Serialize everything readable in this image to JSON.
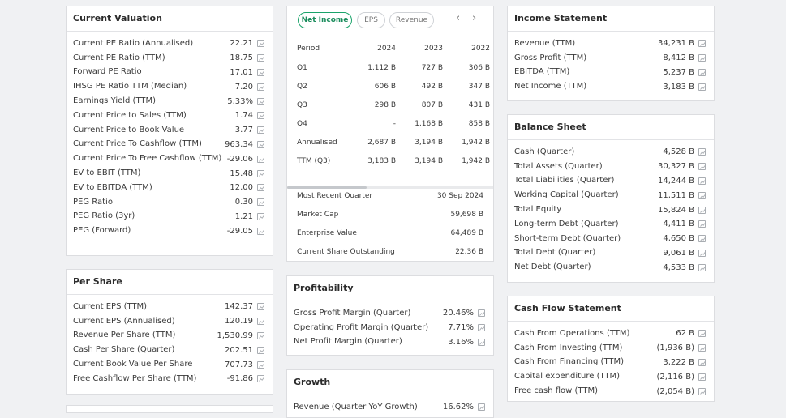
{
  "current_valuation": {
    "title": "Current Valuation",
    "rows": [
      {
        "label": "Current PE Ratio (Annualised)",
        "value": "22.21"
      },
      {
        "label": "Current PE Ratio (TTM)",
        "value": "18.75"
      },
      {
        "label": "Forward PE Ratio",
        "value": "17.01"
      },
      {
        "label": "IHSG PE Ratio TTM (Median)",
        "value": "7.20"
      },
      {
        "label": "Earnings Yield (TTM)",
        "value": "5.33%"
      },
      {
        "label": "Current Price to Sales (TTM)",
        "value": "1.74"
      },
      {
        "label": "Current Price to Book Value",
        "value": "3.77"
      },
      {
        "label": "Current Price To Cashflow (TTM)",
        "value": "963.34"
      },
      {
        "label": "Current Price To Free Cashflow (TTM)",
        "value": "-29.06"
      },
      {
        "label": "EV to EBIT (TTM)",
        "value": "15.48"
      },
      {
        "label": "EV to EBITDA (TTM)",
        "value": "12.00"
      },
      {
        "label": "PEG Ratio",
        "value": "0.30"
      },
      {
        "label": "PEG Ratio (3yr)",
        "value": "1.21"
      },
      {
        "label": "PEG (Forward)",
        "value": "-29.05"
      }
    ]
  },
  "per_share": {
    "title": "Per Share",
    "rows": [
      {
        "label": "Current EPS (TTM)",
        "value": "142.37"
      },
      {
        "label": "Current EPS (Annualised)",
        "value": "120.19"
      },
      {
        "label": "Revenue Per Share (TTM)",
        "value": "1,530.99"
      },
      {
        "label": "Cash Per Share (Quarter)",
        "value": "202.51"
      },
      {
        "label": "Current Book Value Per Share",
        "value": "707.73"
      },
      {
        "label": "Free Cashflow Per Share (TTM)",
        "value": "-91.86"
      }
    ]
  },
  "quarterly": {
    "tabs": [
      "Net Income",
      "EPS",
      "Revenue"
    ],
    "active_tab": "Net Income",
    "prev_icon": "‹",
    "next_icon": "›",
    "columns": [
      "Period",
      "2024",
      "2023",
      "2022"
    ],
    "rows": [
      [
        "Q1",
        "1,112 B",
        "727 B",
        "306 B"
      ],
      [
        "Q2",
        "606 B",
        "492 B",
        "347 B"
      ],
      [
        "Q3",
        "298 B",
        "807 B",
        "431 B"
      ],
      [
        "Q4",
        "-",
        "1,168 B",
        "858 B"
      ],
      [
        "Annualised",
        "2,687 B",
        "3,194 B",
        "1,942 B"
      ],
      [
        "TTM (Q3)",
        "3,183 B",
        "3,194 B",
        "1,942 B"
      ]
    ],
    "summary": [
      {
        "label": "Most Recent Quarter",
        "value": "30 Sep 2024"
      },
      {
        "label": "Market Cap",
        "value": "59,698 B"
      },
      {
        "label": "Enterprise Value",
        "value": "64,489 B"
      },
      {
        "label": "Current Share Outstanding",
        "value": "22.36 B"
      }
    ]
  },
  "profitability": {
    "title": "Profitability",
    "rows": [
      {
        "label": "Gross Profit Margin (Quarter)",
        "value": "20.46%"
      },
      {
        "label": "Operating Profit Margin (Quarter)",
        "value": "7.71%"
      },
      {
        "label": "Net Profit Margin (Quarter)",
        "value": "3.16%"
      }
    ]
  },
  "growth": {
    "title": "Growth",
    "rows": [
      {
        "label": "Revenue (Quarter YoY Growth)",
        "value": "16.62%"
      }
    ]
  },
  "income_statement": {
    "title": "Income Statement",
    "rows": [
      {
        "label": "Revenue (TTM)",
        "value": "34,231 B"
      },
      {
        "label": "Gross Profit (TTM)",
        "value": "8,412 B"
      },
      {
        "label": "EBITDA (TTM)",
        "value": "5,237 B"
      },
      {
        "label": "Net Income (TTM)",
        "value": "3,183 B"
      }
    ]
  },
  "balance_sheet": {
    "title": "Balance Sheet",
    "rows": [
      {
        "label": "Cash (Quarter)",
        "value": "4,528 B"
      },
      {
        "label": "Total Assets (Quarter)",
        "value": "30,327 B"
      },
      {
        "label": "Total Liabilities (Quarter)",
        "value": "14,244 B"
      },
      {
        "label": "Working Capital (Quarter)",
        "value": "11,511 B"
      },
      {
        "label": "Total Equity",
        "value": "15,824 B"
      },
      {
        "label": "Long-term Debt (Quarter)",
        "value": "4,411 B"
      },
      {
        "label": "Short-term Debt (Quarter)",
        "value": "4,650 B"
      },
      {
        "label": "Total Debt (Quarter)",
        "value": "9,061 B"
      },
      {
        "label": "Net Debt (Quarter)",
        "value": "4,533 B"
      }
    ]
  },
  "cash_flow": {
    "title": "Cash Flow Statement",
    "rows": [
      {
        "label": "Cash From Operations (TTM)",
        "value": "62 B"
      },
      {
        "label": "Cash From Investing (TTM)",
        "value": "(1,936 B)"
      },
      {
        "label": "Cash From Financing (TTM)",
        "value": "3,222 B"
      },
      {
        "label": "Capital expenditure (TTM)",
        "value": "(2,116 B)"
      },
      {
        "label": "Free cash flow (TTM)",
        "value": "(2,054 B)"
      }
    ]
  },
  "icons": {
    "row_icon": "chart-icon"
  },
  "colors": {
    "accent": "#1aa36a",
    "background": "#f0f1f3",
    "card": "#ffffff",
    "border": "#dcdde0"
  }
}
